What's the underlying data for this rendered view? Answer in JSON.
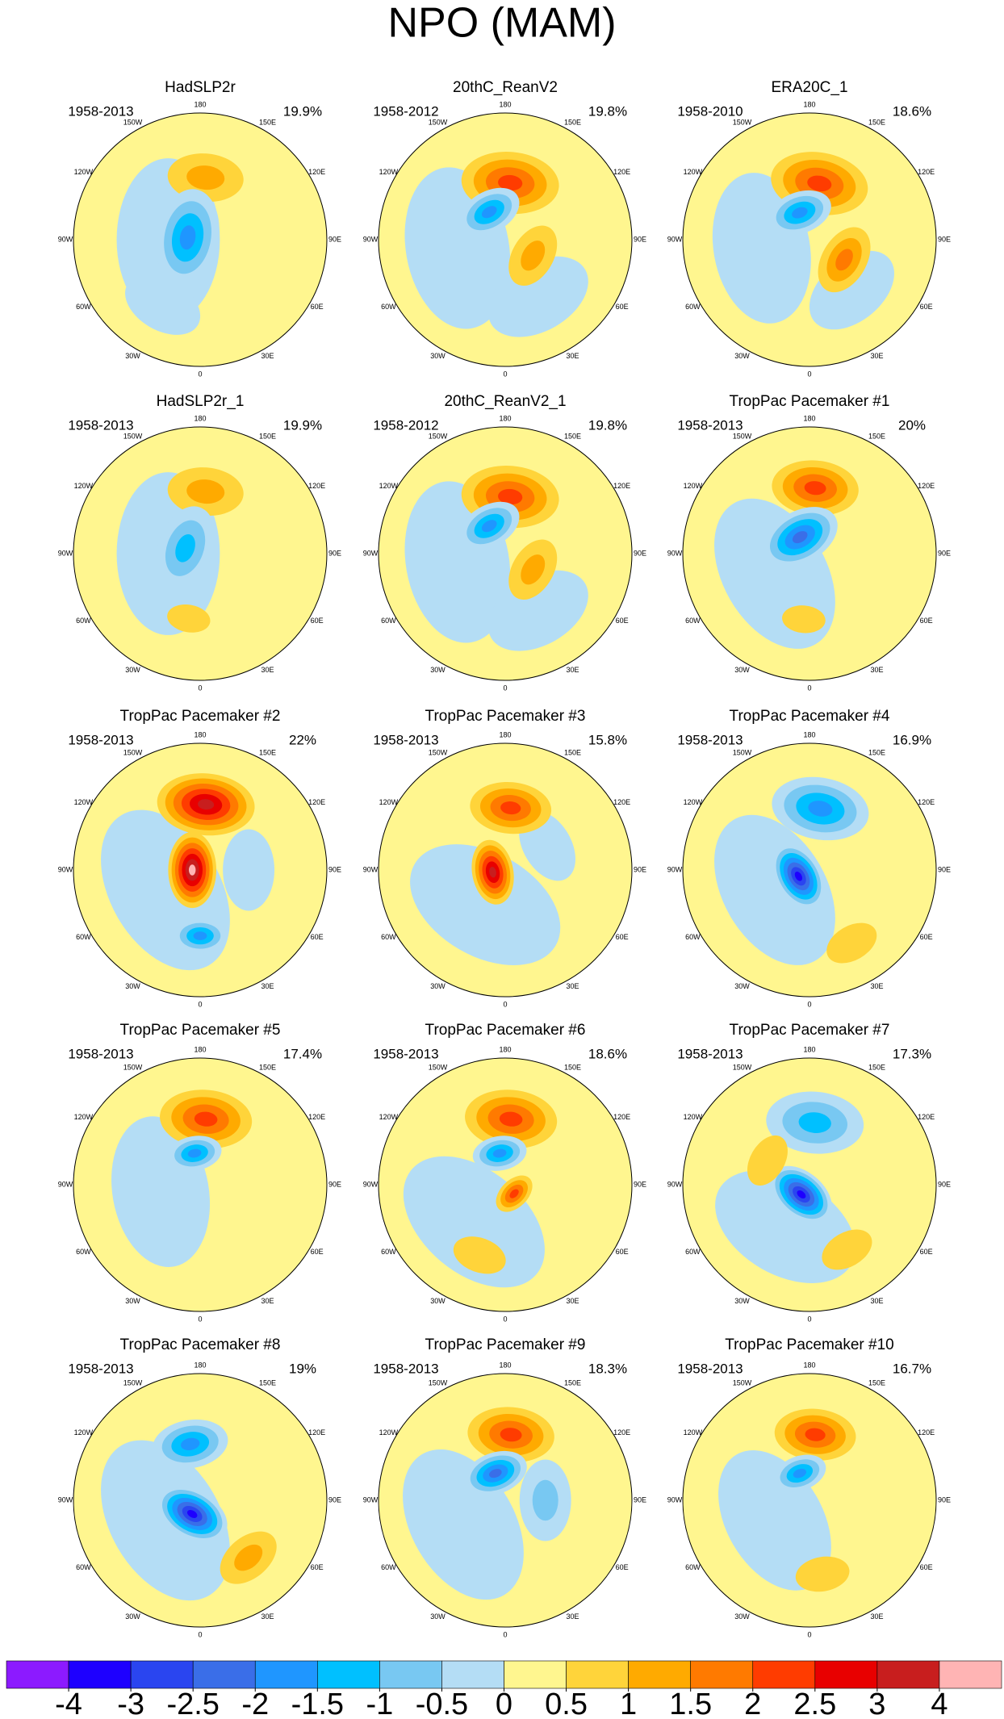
{
  "title": "NPO (MAM)",
  "map": {
    "min_lat": 20
  },
  "longitude_labels": [
    {
      "label": "180",
      "lon": 180
    },
    {
      "label": "150W",
      "lon": -150
    },
    {
      "label": "150E",
      "lon": 150
    },
    {
      "label": "120W",
      "lon": -120
    },
    {
      "label": "120E",
      "lon": 120
    },
    {
      "label": "90W",
      "lon": -90
    },
    {
      "label": "90E",
      "lon": 90
    },
    {
      "label": "60W",
      "lon": -60
    },
    {
      "label": "60E",
      "lon": 60
    },
    {
      "label": "30W",
      "lon": -30
    },
    {
      "label": "30E",
      "lon": 30
    },
    {
      "label": "0",
      "lon": 0
    }
  ],
  "panels": [
    {
      "title": "HadSLP2r",
      "period": "1958-2013",
      "variance": "19.9%",
      "centers": [
        {
          "lat": 70,
          "lon": -90,
          "value": -0.4,
          "extent": 30
        },
        {
          "lat": 45,
          "lon": -30,
          "value": -0.3,
          "extent": 15
        },
        {
          "lat": 52,
          "lon": 175,
          "value": 1.3,
          "extent": 14
        },
        {
          "lat": 82,
          "lon": -100,
          "value": -1.8,
          "extent": 18
        }
      ]
    },
    {
      "title": "20thC_ReanV2",
      "period": "1958-2012",
      "variance": "19.8%",
      "centers": [
        {
          "lat": 60,
          "lon": -80,
          "value": -0.4,
          "extent": 30
        },
        {
          "lat": 50,
          "lon": 30,
          "value": -0.3,
          "extent": 20
        },
        {
          "lat": 55,
          "lon": 175,
          "value": 2.2,
          "extent": 18
        },
        {
          "lat": 70,
          "lon": -150,
          "value": -1.8,
          "extent": 12
        },
        {
          "lat": 70,
          "lon": 60,
          "value": 1.2,
          "extent": 12
        }
      ]
    },
    {
      "title": "ERA20C_1",
      "period": "1958-2010",
      "variance": "18.6%",
      "centers": [
        {
          "lat": 60,
          "lon": -80,
          "value": -0.4,
          "extent": 28
        },
        {
          "lat": 50,
          "lon": 40,
          "value": -0.3,
          "extent": 18
        },
        {
          "lat": 55,
          "lon": 170,
          "value": 2.4,
          "extent": 18
        },
        {
          "lat": 72,
          "lon": -160,
          "value": -1.9,
          "extent": 12
        },
        {
          "lat": 65,
          "lon": 60,
          "value": 1.6,
          "extent": 13
        }
      ]
    },
    {
      "title": "HadSLP2r_1",
      "period": "1958-2013",
      "variance": "19.9%",
      "centers": [
        {
          "lat": 70,
          "lon": -90,
          "value": -0.4,
          "extent": 30
        },
        {
          "lat": 52,
          "lon": 175,
          "value": 1.3,
          "extent": 14
        },
        {
          "lat": 80,
          "lon": -110,
          "value": -1.4,
          "extent": 16
        },
        {
          "lat": 50,
          "lon": -10,
          "value": 0.8,
          "extent": 8
        }
      ]
    },
    {
      "title": "20thC_ReanV2_1",
      "period": "1958-2012",
      "variance": "19.8%",
      "centers": [
        {
          "lat": 60,
          "lon": -80,
          "value": -0.4,
          "extent": 30
        },
        {
          "lat": 50,
          "lon": 30,
          "value": -0.3,
          "extent": 20
        },
        {
          "lat": 55,
          "lon": 175,
          "value": 2.2,
          "extent": 18
        },
        {
          "lat": 70,
          "lon": -150,
          "value": -1.8,
          "extent": 12
        },
        {
          "lat": 70,
          "lon": 60,
          "value": 1.2,
          "extent": 12
        }
      ]
    },
    {
      "title": "TropPac Pacemaker #1",
      "period": "1958-2013",
      "variance": "20%",
      "centers": [
        {
          "lat": 65,
          "lon": -60,
          "value": -0.4,
          "extent": 30
        },
        {
          "lat": 50,
          "lon": 175,
          "value": 2.2,
          "extent": 16
        },
        {
          "lat": 78,
          "lon": -150,
          "value": -2.4,
          "extent": 15
        },
        {
          "lat": 50,
          "lon": -5,
          "value": 0.8,
          "extent": 8
        }
      ]
    },
    {
      "title": "TropPac Pacemaker #2",
      "period": "1958-2013",
      "variance": "22%",
      "centers": [
        {
          "lat": 65,
          "lon": -60,
          "value": -0.4,
          "extent": 32
        },
        {
          "lat": 60,
          "lon": 90,
          "value": -0.3,
          "extent": 15
        },
        {
          "lat": 50,
          "lon": 175,
          "value": 3.2,
          "extent": 18
        },
        {
          "lat": 85,
          "lon": -90,
          "value": 4.2,
          "extent": 14
        },
        {
          "lat": 50,
          "lon": 0,
          "value": -1.7,
          "extent": 10
        }
      ]
    },
    {
      "title": "TropPac Pacemaker #3",
      "period": "1958-2013",
      "variance": "15.8%",
      "centers": [
        {
          "lat": 65,
          "lon": -30,
          "value": -0.4,
          "extent": 30
        },
        {
          "lat": 60,
          "lon": 120,
          "value": -0.5,
          "extent": 14
        },
        {
          "lat": 52,
          "lon": 175,
          "value": 2.3,
          "extent": 15
        },
        {
          "lat": 82,
          "lon": -80,
          "value": 3.2,
          "extent": 12
        }
      ]
    },
    {
      "title": "TropPac Pacemaker #4",
      "period": "1958-2013",
      "variance": "16.9%",
      "centers": [
        {
          "lat": 65,
          "lon": -60,
          "value": -0.4,
          "extent": 30
        },
        {
          "lat": 52,
          "lon": 170,
          "value": -2.0,
          "extent": 18
        },
        {
          "lat": 82,
          "lon": -60,
          "value": -3.5,
          "extent": 13
        },
        {
          "lat": 40,
          "lon": 30,
          "value": 0.9,
          "extent": 10
        }
      ]
    },
    {
      "title": "TropPac Pacemaker #5",
      "period": "1958-2013",
      "variance": "17.4%",
      "centers": [
        {
          "lat": 65,
          "lon": -80,
          "value": -0.4,
          "extent": 28
        },
        {
          "lat": 50,
          "lon": 175,
          "value": 2.1,
          "extent": 17
        },
        {
          "lat": 70,
          "lon": -170,
          "value": -1.8,
          "extent": 10
        }
      ]
    },
    {
      "title": "TropPac Pacemaker #6",
      "period": "1958-2013",
      "variance": "18.6%",
      "centers": [
        {
          "lat": 60,
          "lon": -40,
          "value": -0.4,
          "extent": 30
        },
        {
          "lat": 50,
          "lon": 175,
          "value": 2.2,
          "extent": 17
        },
        {
          "lat": 70,
          "lon": -170,
          "value": -1.8,
          "extent": 10
        },
        {
          "lat": 82,
          "lon": 45,
          "value": 2.3,
          "extent": 8
        },
        {
          "lat": 45,
          "lon": -20,
          "value": 0.9,
          "extent": 10
        }
      ]
    },
    {
      "title": "TropPac Pacemaker #7",
      "period": "1958-2013",
      "variance": "17.3%",
      "centers": [
        {
          "lat": 60,
          "lon": -30,
          "value": -0.4,
          "extent": 28
        },
        {
          "lat": 52,
          "lon": 175,
          "value": -1.4,
          "extent": 18
        },
        {
          "lat": 82,
          "lon": -40,
          "value": -3.5,
          "extent": 13
        },
        {
          "lat": 60,
          "lon": -120,
          "value": 0.8,
          "extent": 10
        },
        {
          "lat": 45,
          "lon": 30,
          "value": 0.9,
          "extent": 10
        }
      ]
    },
    {
      "title": "TropPac Pacemaker #8",
      "period": "1958-2013",
      "variance": "19%",
      "centers": [
        {
          "lat": 65,
          "lon": -60,
          "value": -0.4,
          "extent": 32
        },
        {
          "lat": 55,
          "lon": -170,
          "value": -1.6,
          "extent": 14
        },
        {
          "lat": 80,
          "lon": -30,
          "value": -3.3,
          "extent": 14
        },
        {
          "lat": 45,
          "lon": 40,
          "value": 1.2,
          "extent": 12
        }
      ]
    },
    {
      "title": "TropPac Pacemaker #9",
      "period": "1958-2013",
      "variance": "18.3%",
      "centers": [
        {
          "lat": 60,
          "lon": -60,
          "value": -0.4,
          "extent": 30
        },
        {
          "lat": 65,
          "lon": 90,
          "value": -0.6,
          "extent": 15
        },
        {
          "lat": 50,
          "lon": 175,
          "value": 2.3,
          "extent": 16
        },
        {
          "lat": 72,
          "lon": -160,
          "value": -2.1,
          "extent": 12
        }
      ]
    },
    {
      "title": "TropPac Pacemaker #10",
      "period": "1958-2013",
      "variance": "16.7%",
      "centers": [
        {
          "lat": 65,
          "lon": -60,
          "value": -0.4,
          "extent": 28
        },
        {
          "lat": 50,
          "lon": 175,
          "value": 2.4,
          "extent": 15
        },
        {
          "lat": 72,
          "lon": -160,
          "value": -2.0,
          "extent": 10
        },
        {
          "lat": 45,
          "lon": 10,
          "value": 0.8,
          "extent": 10
        }
      ]
    }
  ],
  "colorbar": {
    "colors": [
      "#8c1aff",
      "#1e00ff",
      "#2a45f0",
      "#3a6ee8",
      "#1f96ff",
      "#00c0ff",
      "#78c8f2",
      "#b4ddf5",
      "#fff68f",
      "#ffd43a",
      "#ffaa00",
      "#ff7a00",
      "#ff3c00",
      "#e80000",
      "#c81e1e",
      "#ffb4b4"
    ],
    "ticks": [
      -4,
      -3,
      -2.5,
      -2,
      -1.5,
      -1,
      -0.5,
      0,
      0.5,
      1,
      1.5,
      2,
      2.5,
      3,
      4
    ]
  }
}
